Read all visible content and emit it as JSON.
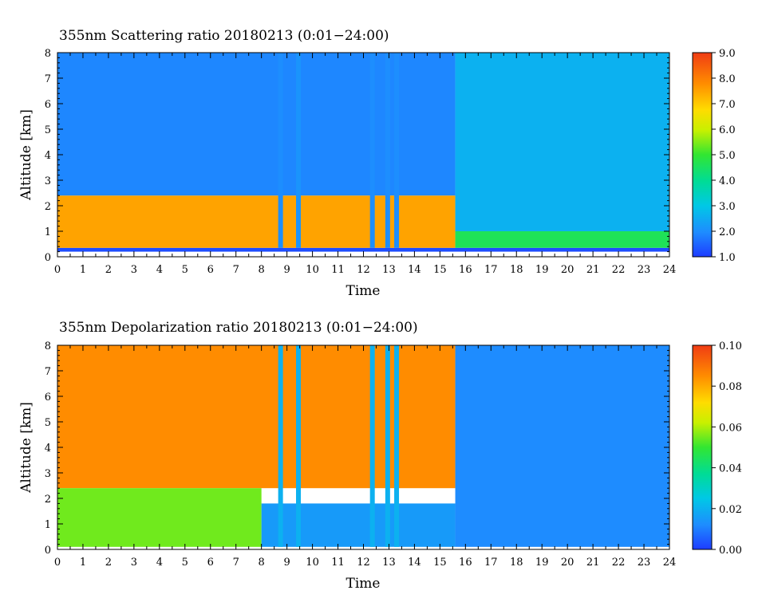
{
  "chart_data": [
    {
      "type": "heatmap",
      "title": "355nm Scattering ratio  20180213 (0:01−24:00)",
      "xlabel": "Time",
      "ylabel": "Altitude [km]",
      "xlim": [
        0,
        24
      ],
      "ylim": [
        0,
        8
      ],
      "x_ticks": [
        "0",
        "1",
        "2",
        "3",
        "4",
        "5",
        "6",
        "7",
        "8",
        "9",
        "10",
        "11",
        "12",
        "13",
        "14",
        "15",
        "16",
        "17",
        "18",
        "19",
        "20",
        "21",
        "22",
        "23",
        "24"
      ],
      "y_ticks": [
        "0",
        "1",
        "2",
        "3",
        "4",
        "5",
        "6",
        "7",
        "8"
      ],
      "colorbar": {
        "range": [
          1.0,
          9.0
        ],
        "ticks": [
          "1.0",
          "2.0",
          "3.0",
          "4.0",
          "5.0",
          "6.0",
          "7.0",
          "8.0",
          "9.0"
        ]
      },
      "regions": [
        {
          "x": [
            0,
            24
          ],
          "y": [
            0.2,
            0.35
          ],
          "value": 1.2
        },
        {
          "x": [
            0,
            15.6
          ],
          "y": [
            0.35,
            2.4
          ],
          "value": 7.5
        },
        {
          "x": [
            0,
            15.6
          ],
          "y": [
            2.4,
            8.0
          ],
          "value": 1.9
        },
        {
          "x": [
            15.6,
            24
          ],
          "y": [
            0.35,
            1.0
          ],
          "value": 4.6
        },
        {
          "x": [
            15.6,
            24
          ],
          "y": [
            1.0,
            8.0
          ],
          "value": 2.6
        }
      ],
      "columns": [
        {
          "x": 8.75,
          "y": [
            0.35,
            8.0
          ],
          "value": 2.0
        },
        {
          "x": 9.45,
          "y": [
            0.35,
            8.0
          ],
          "value": 2.1
        },
        {
          "x": 12.35,
          "y": [
            0.35,
            8.0
          ],
          "value": 2.0
        },
        {
          "x": 12.95,
          "y": [
            0.35,
            8.0
          ],
          "value": 2.0
        },
        {
          "x": 13.3,
          "y": [
            0.35,
            8.0
          ],
          "value": 2.0
        }
      ]
    },
    {
      "type": "heatmap",
      "title": "355nm Depolarization ratio  20180213 (0:01−24:00)",
      "xlabel": "Time",
      "ylabel": "Altitude [km]",
      "xlim": [
        0,
        24
      ],
      "ylim": [
        0,
        8
      ],
      "x_ticks": [
        "0",
        "1",
        "2",
        "3",
        "4",
        "5",
        "6",
        "7",
        "8",
        "9",
        "10",
        "11",
        "12",
        "13",
        "14",
        "15",
        "16",
        "17",
        "18",
        "19",
        "20",
        "21",
        "22",
        "23",
        "24"
      ],
      "y_ticks": [
        "0",
        "1",
        "2",
        "3",
        "4",
        "5",
        "6",
        "7",
        "8"
      ],
      "colorbar": {
        "range": [
          0.0,
          0.1
        ],
        "ticks": [
          "0.00",
          "0.02",
          "0.04",
          "0.06",
          "0.08",
          "0.10"
        ]
      },
      "regions": [
        {
          "x": [
            0,
            15.6
          ],
          "y": [
            2.4,
            8.0
          ],
          "value": 0.085
        },
        {
          "x": [
            0,
            8.0
          ],
          "y": [
            0.1,
            2.4
          ],
          "value": 0.055
        },
        {
          "x": [
            8.0,
            15.6
          ],
          "y": [
            0.1,
            1.8
          ],
          "value": 0.015
        },
        {
          "x": [
            15.6,
            24
          ],
          "y": [
            0.1,
            8.0
          ],
          "value": 0.012
        }
      ],
      "columns": [
        {
          "x": 8.75,
          "y": [
            0.1,
            8.0
          ],
          "value": 0.02
        },
        {
          "x": 9.45,
          "y": [
            0.1,
            8.0
          ],
          "value": 0.02
        },
        {
          "x": 12.35,
          "y": [
            0.1,
            8.0
          ],
          "value": 0.02
        },
        {
          "x": 12.95,
          "y": [
            0.1,
            8.0
          ],
          "value": 0.02
        },
        {
          "x": 13.3,
          "y": [
            0.1,
            8.0
          ],
          "value": 0.02
        }
      ]
    }
  ]
}
